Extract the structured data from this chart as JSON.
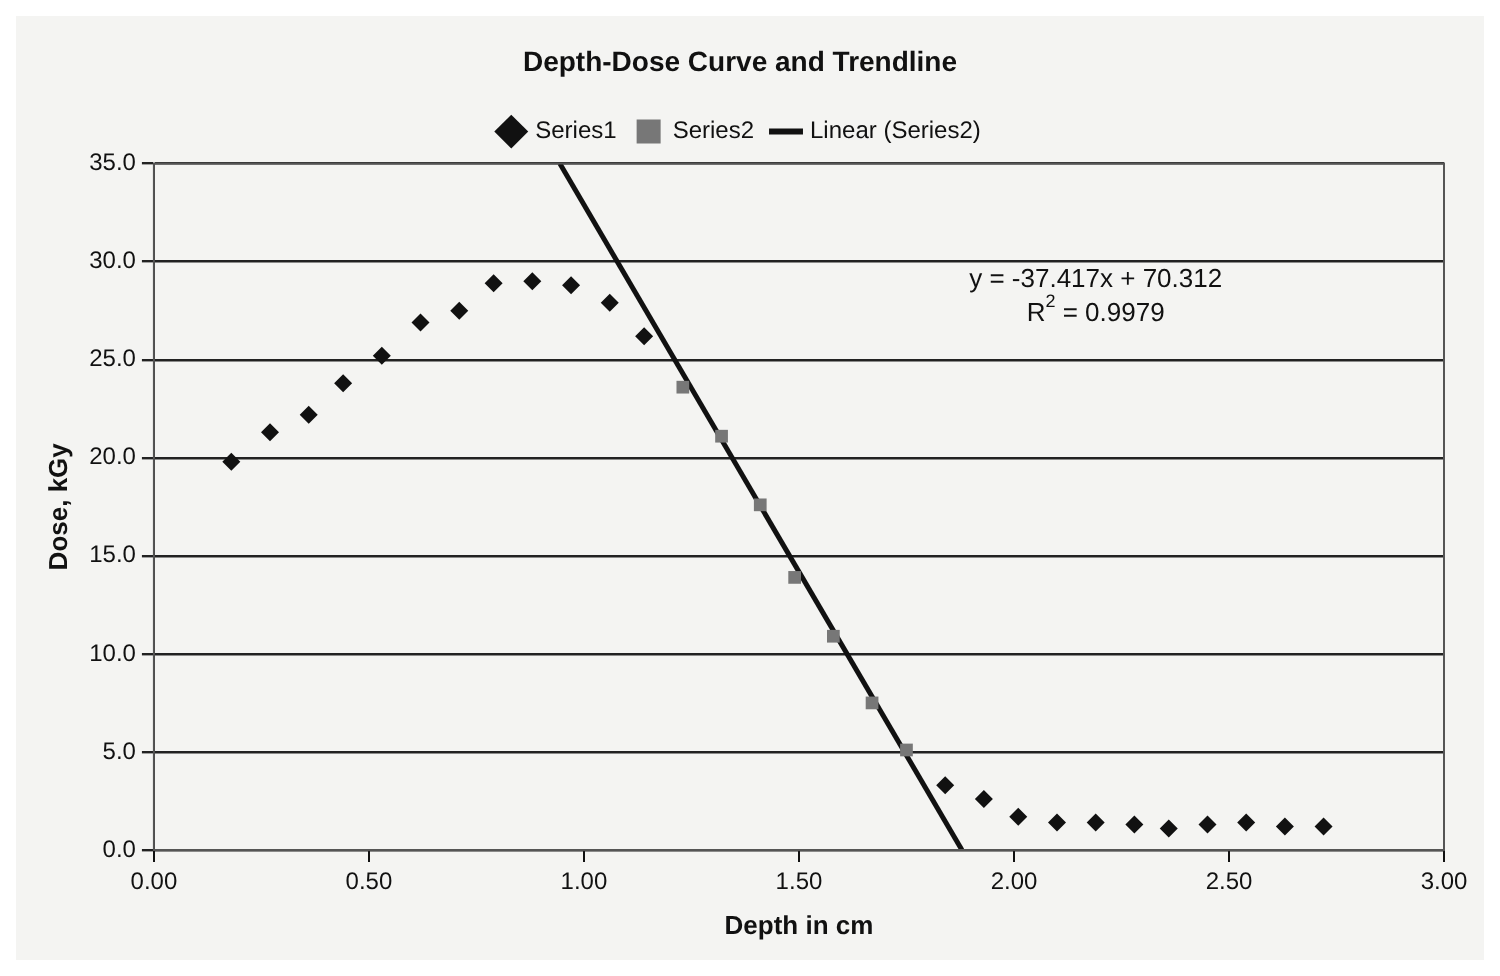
{
  "chart_data": {
    "type": "scatter",
    "title": "Depth-Dose Curve and Trendline",
    "xlabel": "Depth in cm",
    "ylabel": "Dose, kGy",
    "series": [
      {
        "name": "Series1",
        "type": "scatter",
        "color": "#111111",
        "marker": "diamond",
        "x": [
          0.18,
          0.27,
          0.36,
          0.44,
          0.53,
          0.62,
          0.71,
          0.79,
          0.88,
          0.97,
          1.06,
          1.14,
          1.84,
          1.93,
          2.01,
          2.1,
          2.19,
          2.28,
          2.36,
          2.45,
          2.54,
          2.63,
          2.72
        ],
        "values": [
          19.8,
          21.3,
          22.2,
          23.8,
          25.2,
          26.9,
          27.5,
          28.9,
          29.0,
          28.8,
          27.9,
          26.2,
          3.3,
          2.6,
          1.7,
          1.4,
          1.4,
          1.3,
          1.1,
          1.3,
          1.4,
          1.2,
          1.2
        ]
      },
      {
        "name": "Series2",
        "type": "scatter",
        "color": "#777777",
        "marker": "square",
        "x": [
          1.23,
          1.32,
          1.41,
          1.49,
          1.58,
          1.67,
          1.75
        ],
        "values": [
          23.6,
          21.1,
          17.6,
          13.9,
          10.9,
          7.5,
          5.1
        ]
      },
      {
        "name": "Linear (Series2)",
        "type": "line",
        "color": "#111111",
        "marker": "none",
        "line_style": "solid",
        "x": [
          0.944,
          1.879
        ],
        "values": [
          35,
          0
        ]
      }
    ],
    "xlim": [
      0,
      3
    ],
    "xticks": [
      {
        "value": 0,
        "label": "0.00"
      },
      {
        "value": 0.5,
        "label": "0.50"
      },
      {
        "value": 1,
        "label": "1.00"
      },
      {
        "value": 1.5,
        "label": "1.50"
      },
      {
        "value": 2,
        "label": "2.00"
      },
      {
        "value": 2.5,
        "label": "2.50"
      },
      {
        "value": 3,
        "label": "3.00"
      }
    ],
    "ylim": [
      0,
      35
    ],
    "yticks": [
      {
        "value": 0,
        "label": "0.0"
      },
      {
        "value": 5,
        "label": "5.0"
      },
      {
        "value": 10,
        "label": "10.0"
      },
      {
        "value": 15,
        "label": "15.0"
      },
      {
        "value": 20,
        "label": "20.0"
      },
      {
        "value": 25,
        "label": "25.0"
      },
      {
        "value": 30,
        "label": "30.0"
      },
      {
        "value": 35,
        "label": "35.0"
      }
    ],
    "grid": "y",
    "legend": "top",
    "annotations": [
      "y = -37.417x + 70.312",
      "R$^{2}$ = 0.9979"
    ]
  }
}
